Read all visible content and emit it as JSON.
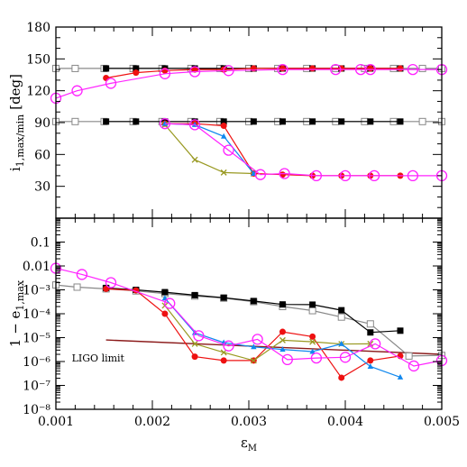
{
  "chart_data": [
    {
      "type": "line",
      "panel": "top",
      "ylabel_main": "i",
      "ylabel_sub": "1,max/min",
      "ylabel_unit": "[deg]",
      "xlim": [
        0.001,
        0.005
      ],
      "ylim": [
        0,
        180
      ],
      "yscale": "linear",
      "yticks": [
        30,
        60,
        90,
        120,
        150,
        180
      ],
      "ytick_labels": [
        "30",
        "60",
        "90",
        "120",
        "150",
        "180"
      ],
      "xticks": [
        0.001,
        0.002,
        0.003,
        0.004,
        0.005
      ],
      "grid": false,
      "series": [
        {
          "color": "#888888",
          "marker": "open-square",
          "x": [
            0.001,
            0.0012,
            0.0015,
            0.0018,
            0.0021,
            0.0024,
            0.0027,
            0.003,
            0.0033,
            0.0036,
            0.0039,
            0.0042,
            0.0045,
            0.0048,
            0.005
          ],
          "y": [
            141,
            141,
            141,
            141,
            141,
            141,
            141,
            141,
            141,
            141,
            141,
            141,
            141,
            141,
            141
          ]
        },
        {
          "color": "#888888",
          "marker": "open-square",
          "x": [
            0.001,
            0.0012,
            0.0015,
            0.0018,
            0.0021,
            0.0024,
            0.0027,
            0.003,
            0.0033,
            0.0036,
            0.0039,
            0.0042,
            0.0045,
            0.0048,
            0.005
          ],
          "y": [
            91,
            91,
            91,
            91,
            91,
            91,
            91,
            91,
            91,
            91,
            91,
            91,
            91,
            91,
            91
          ]
        },
        {
          "color": "#000000",
          "marker": "filled-square",
          "x": [
            0.00152,
            0.00183,
            0.00213,
            0.00244,
            0.00274,
            0.00305,
            0.00335,
            0.00366,
            0.00396,
            0.00426,
            0.00457
          ],
          "y": [
            141,
            141,
            141,
            141,
            141,
            141,
            141,
            141,
            141,
            141,
            141
          ]
        },
        {
          "color": "#000000",
          "marker": "filled-square",
          "x": [
            0.00152,
            0.00183,
            0.00213,
            0.00244,
            0.00274,
            0.00305,
            0.00335,
            0.00366,
            0.00396,
            0.00426,
            0.00457
          ],
          "y": [
            91,
            91,
            91,
            91,
            91,
            91,
            91,
            91,
            91,
            91,
            91
          ]
        },
        {
          "color": "#ee1111",
          "marker": "filled-circle",
          "x": [
            0.00152,
            0.00183,
            0.00213,
            0.00244,
            0.00274,
            0.00305,
            0.00335,
            0.00366,
            0.00396,
            0.00426,
            0.00457
          ],
          "y": [
            132,
            137,
            139,
            140,
            140,
            141,
            141,
            141,
            141,
            141,
            141
          ]
        },
        {
          "color": "#ee1111",
          "marker": "filled-circle",
          "x": [
            0.00213,
            0.00244,
            0.00274,
            0.00305,
            0.00335,
            0.00366,
            0.00396,
            0.00426,
            0.00457
          ],
          "y": [
            89,
            89,
            87,
            42,
            41,
            40,
            40,
            40,
            40
          ]
        },
        {
          "color": "#999922",
          "marker": "cross",
          "x": [
            0.00213,
            0.00244,
            0.00274,
            0.00305
          ],
          "y": [
            88,
            55,
            43,
            42
          ]
        },
        {
          "color": "#1188ee",
          "marker": "filled-triangle",
          "x": [
            0.00213,
            0.00244,
            0.00274,
            0.00305
          ],
          "y": [
            89,
            88,
            77,
            42
          ]
        },
        {
          "color": "#ff22ff",
          "marker": "open-circle",
          "x": [
            0.001,
            0.00122,
            0.00157,
            0.00213,
            0.00244,
            0.00279,
            0.00335,
            0.0039,
            0.00416,
            0.00426,
            0.0047,
            0.005
          ],
          "y": [
            113,
            120,
            127,
            136,
            138,
            139,
            140,
            140,
            140,
            140,
            140,
            140
          ]
        },
        {
          "color": "#ff22ff",
          "marker": "open-circle",
          "x": [
            0.00213,
            0.00244,
            0.00279,
            0.00312,
            0.00337,
            0.0037,
            0.004,
            0.0043,
            0.0047,
            0.005
          ],
          "y": [
            89,
            88,
            64,
            41,
            42,
            40,
            40,
            40,
            40,
            40
          ]
        }
      ]
    },
    {
      "type": "line",
      "panel": "bottom",
      "ylabel": "1 − e",
      "ylabel_sub": "1,max",
      "xlabel": "ε",
      "xlabel_sub": "M",
      "xlim": [
        0.001,
        0.005
      ],
      "ylim": [
        1e-08,
        1
      ],
      "yscale": "log",
      "yticks": [
        1e-08,
        1e-07,
        1e-06,
        1e-05,
        0.0001,
        0.001,
        0.01,
        0.1
      ],
      "ytick_labels": [
        "10⁻⁸",
        "10⁻⁷",
        "10⁻⁶",
        "10⁻⁵",
        "10⁻⁴",
        "10⁻³",
        "0.01",
        "0.1"
      ],
      "xticks": [
        0.001,
        0.002,
        0.003,
        0.004,
        0.005
      ],
      "xtick_labels": [
        "0.001",
        "0.002",
        "0.003",
        "0.004",
        "0.005"
      ],
      "grid": false,
      "annotation": {
        "text": "LIGO limit",
        "x": 0.00152,
        "y": 1.4e-06
      },
      "series": [
        {
          "color": "#8b1a1a",
          "marker": "none",
          "x": [
            0.00152,
            0.005
          ],
          "y": [
            8e-06,
            2e-06
          ]
        },
        {
          "color": "#888888",
          "marker": "open-square",
          "x": [
            0.001,
            0.00122,
            0.00152,
            0.00183,
            0.00213,
            0.00244,
            0.00274,
            0.00305,
            0.00335,
            0.00366,
            0.00396,
            0.00426,
            0.00466,
            0.005
          ],
          "y": [
            0.0016,
            0.0013,
            0.0011,
            0.0009,
            0.0007,
            0.00055,
            0.00045,
            0.00032,
            0.0002,
            0.000135,
            7.25e-05,
            3.75e-05,
            1.7e-06,
            1.8e-06
          ]
        },
        {
          "color": "#000000",
          "marker": "filled-square",
          "x": [
            0.00152,
            0.00183,
            0.00213,
            0.00244,
            0.00274,
            0.00305,
            0.00335,
            0.00366,
            0.00396,
            0.00426,
            0.00457
          ],
          "y": [
            0.0012,
            0.001,
            0.0008,
            0.0006,
            0.00047,
            0.00034,
            0.000245,
            0.00024,
            0.00014,
            1.65e-05,
            1.95e-05
          ]
        },
        {
          "color": "#ee1111",
          "marker": "filled-circle",
          "x": [
            0.00152,
            0.00183,
            0.00213,
            0.00244,
            0.00274,
            0.00305,
            0.00335,
            0.00366,
            0.00396,
            0.00426,
            0.00457
          ],
          "y": [
            0.0011,
            0.00095,
            0.0001,
            1.6e-06,
            1.1e-06,
            1.1e-06,
            1.75e-05,
            1.1e-05,
            2.1e-07,
            1.1e-06,
            1.7e-06
          ]
        },
        {
          "color": "#999922",
          "marker": "cross",
          "x": [
            0.00213,
            0.00244,
            0.00274,
            0.00305,
            0.00335,
            0.00366,
            0.00396,
            0.00426
          ],
          "y": [
            0.00022,
            5.5e-06,
            2.4e-06,
            1.1e-06,
            7.8e-06,
            6.7e-06,
            5.4e-06,
            5.5e-06
          ]
        },
        {
          "color": "#1188ee",
          "marker": "filled-triangle",
          "x": [
            0.00213,
            0.00244,
            0.00274,
            0.00305,
            0.00335,
            0.00366,
            0.00396,
            0.00426,
            0.00457
          ],
          "y": [
            0.00045,
            1.6e-05,
            6.2e-06,
            4.1e-06,
            3.2e-06,
            2.6e-06,
            5.5e-06,
            6.2e-07,
            2.2e-07
          ]
        },
        {
          "color": "#ff22ff",
          "marker": "open-circle",
          "x": [
            0.001,
            0.00127,
            0.00157,
            0.00218,
            0.00248,
            0.00279,
            0.00309,
            0.0034,
            0.0037,
            0.004,
            0.00431,
            0.00471,
            0.005
          ],
          "y": [
            0.008,
            0.0044,
            0.002,
            0.00027,
            1.2e-05,
            4.5e-06,
            8.5e-06,
            1.2e-06,
            1.4e-06,
            1.5e-06,
            5.5e-06,
            6.5e-07,
            1.1e-06
          ]
        }
      ]
    }
  ]
}
